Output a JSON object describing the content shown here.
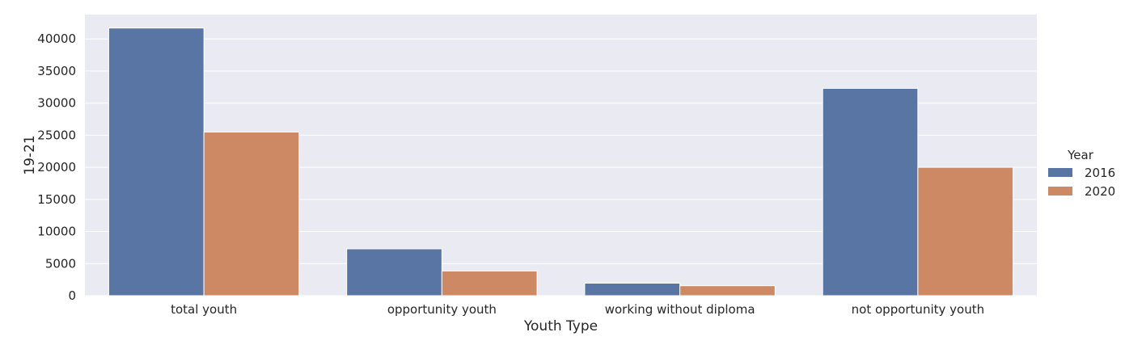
{
  "chart_data": {
    "type": "bar",
    "title": "",
    "xlabel": "Youth Type",
    "ylabel": "19-21",
    "categories": [
      "total youth",
      "opportunity youth",
      "working without diploma",
      "not opportunity youth"
    ],
    "series": [
      {
        "name": "2016",
        "color": "#5975a4",
        "values": [
          41700,
          7300,
          1950,
          32300
        ]
      },
      {
        "name": "2020",
        "color": "#cc8963",
        "values": [
          25500,
          3850,
          1550,
          20000
        ]
      }
    ],
    "ylim": [
      0,
      43800
    ],
    "yticks": [
      0,
      5000,
      10000,
      15000,
      20000,
      25000,
      30000,
      35000,
      40000
    ],
    "grid": true,
    "legend": {
      "title": "Year",
      "placement": "right"
    },
    "background_color": "#eaeaf2",
    "grid_color": "#ffffff"
  }
}
